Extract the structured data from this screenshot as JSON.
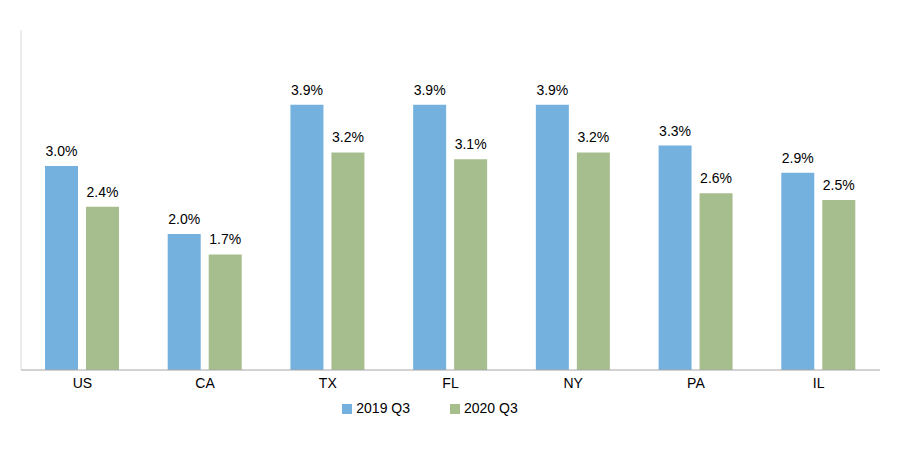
{
  "chart_data": {
    "type": "bar",
    "categories": [
      "US",
      "CA",
      "TX",
      "FL",
      "NY",
      "PA",
      "IL"
    ],
    "series": [
      {
        "name": "2019 Q3",
        "color": "#74b1df",
        "values": [
          3.0,
          2.0,
          3.9,
          3.9,
          3.9,
          3.3,
          2.9
        ],
        "value_labels": [
          "3.0%",
          "2.0%",
          "3.9%",
          "3.9%",
          "3.9%",
          "3.3%",
          "2.9%"
        ]
      },
      {
        "name": "2020 Q3",
        "color": "#a6bd8d",
        "values": [
          2.4,
          1.7,
          3.2,
          3.1,
          3.2,
          2.6,
          2.5
        ],
        "value_labels": [
          "2.4%",
          "1.7%",
          "3.2%",
          "3.1%",
          "3.2%",
          "2.6%",
          "2.5%"
        ]
      }
    ],
    "ylim": [
      0,
      5
    ],
    "grid": false,
    "legend": "bottom",
    "data_labels": true,
    "tick_labels": "x"
  }
}
